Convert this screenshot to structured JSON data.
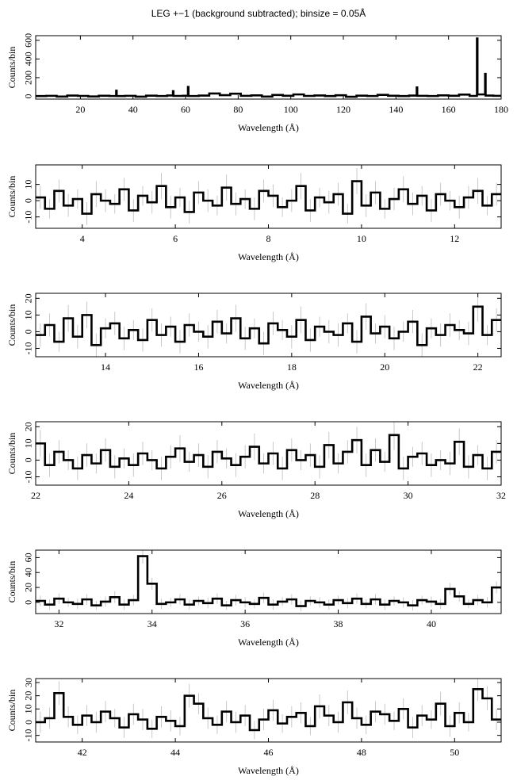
{
  "title": "LEG +−1 (background subtracted); binsize = 0.05Å",
  "chart_data": [
    {
      "type": "step",
      "xlabel": "Wavelength (Å)",
      "ylabel": "Counts/bin",
      "color": "#000000",
      "xlim": [
        3,
        180
      ],
      "xticks": [
        20,
        40,
        60,
        80,
        100,
        120,
        140,
        160,
        180
      ],
      "ylim": [
        -30,
        650
      ],
      "yticks": [
        0,
        200,
        400,
        600
      ],
      "x": [
        3,
        7,
        11,
        15,
        19,
        23,
        27,
        31,
        33.6,
        33.8,
        37,
        41,
        45,
        49,
        53,
        55.2,
        55.4,
        59,
        60.9,
        61.1,
        65,
        69,
        73,
        77,
        81,
        85,
        89,
        93,
        97,
        101,
        105,
        109,
        113,
        117,
        121,
        125,
        129,
        133,
        137,
        141,
        145,
        147.9,
        148.1,
        152,
        156,
        160,
        164,
        168,
        170.8,
        171.0,
        173.9,
        174.1,
        177
      ],
      "values": [
        2,
        5,
        -3,
        8,
        4,
        -2,
        6,
        3,
        60,
        2,
        5,
        -4,
        7,
        3,
        9,
        55,
        4,
        6,
        100,
        3,
        8,
        30,
        12,
        28,
        5,
        10,
        -3,
        14,
        6,
        20,
        4,
        9,
        2,
        11,
        -5,
        7,
        3,
        15,
        6,
        2,
        8,
        95,
        5,
        3,
        10,
        6,
        18,
        4,
        620,
        20,
        240,
        8,
        5
      ]
    },
    {
      "type": "step",
      "xlabel": "Wavelength (Å)",
      "ylabel": "Counts/bin",
      "color": "#000000",
      "error_color": "#bbbbbb",
      "xlim": [
        3,
        13
      ],
      "xticks": [
        4,
        6,
        8,
        10,
        12
      ],
      "ylim": [
        -17,
        22
      ],
      "yticks": [
        -10,
        0,
        10
      ],
      "x": [
        3.0,
        3.2,
        3.4,
        3.6,
        3.8,
        4.0,
        4.2,
        4.4,
        4.6,
        4.8,
        5.0,
        5.2,
        5.4,
        5.6,
        5.8,
        6.0,
        6.2,
        6.4,
        6.6,
        6.8,
        7.0,
        7.2,
        7.4,
        7.6,
        7.8,
        8.0,
        8.2,
        8.4,
        8.6,
        8.8,
        9.0,
        9.2,
        9.4,
        9.6,
        9.8,
        10.0,
        10.2,
        10.4,
        10.6,
        10.8,
        11.0,
        11.2,
        11.4,
        11.6,
        11.8,
        12.0,
        12.2,
        12.4,
        12.6,
        12.8
      ],
      "values": [
        2,
        -5,
        6,
        -3,
        1,
        -8,
        4,
        0,
        -2,
        7,
        -6,
        3,
        -1,
        9,
        -4,
        2,
        -7,
        5,
        0,
        -3,
        8,
        -2,
        1,
        -5,
        6,
        3,
        -4,
        0,
        9,
        -6,
        2,
        -1,
        4,
        -8,
        12,
        -3,
        5,
        -5,
        1,
        7,
        -2,
        3,
        -6,
        4,
        0,
        -4,
        2,
        6,
        -3,
        4
      ],
      "errors": [
        7,
        6,
        7,
        7,
        6,
        7,
        8,
        7,
        6,
        7,
        7,
        6,
        7,
        8,
        7,
        6,
        7,
        7,
        7,
        6,
        8,
        7,
        6,
        7,
        7,
        7,
        6,
        7,
        8,
        7,
        6,
        7,
        7,
        6,
        8,
        7,
        7,
        6,
        7,
        8,
        7,
        6,
        7,
        7,
        6,
        7,
        7,
        8,
        6,
        7
      ]
    },
    {
      "type": "step",
      "xlabel": "Wavelength (Å)",
      "ylabel": "Counts/bin",
      "color": "#000000",
      "error_color": "#bbbbbb",
      "xlim": [
        12.5,
        22.5
      ],
      "xticks": [
        14,
        16,
        18,
        20,
        22
      ],
      "ylim": [
        -15,
        23
      ],
      "yticks": [
        -10,
        0,
        10,
        20
      ],
      "x": [
        12.5,
        12.7,
        12.9,
        13.1,
        13.3,
        13.5,
        13.7,
        13.9,
        14.1,
        14.3,
        14.5,
        14.7,
        14.9,
        15.1,
        15.3,
        15.5,
        15.7,
        15.9,
        16.1,
        16.3,
        16.5,
        16.7,
        16.9,
        17.1,
        17.3,
        17.5,
        17.7,
        17.9,
        18.1,
        18.3,
        18.5,
        18.7,
        18.9,
        19.1,
        19.3,
        19.5,
        19.7,
        19.9,
        20.1,
        20.3,
        20.5,
        20.7,
        20.9,
        21.1,
        21.3,
        21.5,
        21.7,
        21.9,
        22.1,
        22.3
      ],
      "values": [
        -2,
        4,
        -6,
        8,
        -3,
        10,
        -8,
        2,
        5,
        -4,
        1,
        -5,
        7,
        -2,
        3,
        -6,
        4,
        0,
        -3,
        6,
        -1,
        8,
        -4,
        2,
        -7,
        5,
        1,
        -3,
        7,
        -5,
        3,
        0,
        -2,
        5,
        -6,
        9,
        -1,
        3,
        -4,
        0,
        6,
        -8,
        2,
        -2,
        4,
        1,
        -1,
        15,
        -2,
        7
      ],
      "errors": [
        7,
        7,
        6,
        8,
        7,
        8,
        7,
        6,
        7,
        7,
        6,
        7,
        7,
        7,
        6,
        7,
        7,
        6,
        7,
        7,
        6,
        8,
        7,
        6,
        7,
        7,
        6,
        7,
        8,
        7,
        6,
        7,
        7,
        6,
        7,
        8,
        6,
        7,
        7,
        6,
        7,
        7,
        6,
        7,
        7,
        6,
        7,
        9,
        6,
        7
      ]
    },
    {
      "type": "step",
      "xlabel": "Wavelength (Å)",
      "ylabel": "Counts/bin",
      "color": "#000000",
      "error_color": "#bbbbbb",
      "xlim": [
        22,
        32
      ],
      "xticks": [
        22,
        24,
        26,
        28,
        30,
        32
      ],
      "ylim": [
        -15,
        23
      ],
      "yticks": [
        -10,
        0,
        10,
        20
      ],
      "x": [
        22.0,
        22.2,
        22.4,
        22.6,
        22.8,
        23.0,
        23.2,
        23.4,
        23.6,
        23.8,
        24.0,
        24.2,
        24.4,
        24.6,
        24.8,
        25.0,
        25.2,
        25.4,
        25.6,
        25.8,
        26.0,
        26.2,
        26.4,
        26.6,
        26.8,
        27.0,
        27.2,
        27.4,
        27.6,
        27.8,
        28.0,
        28.2,
        28.4,
        28.6,
        28.8,
        29.0,
        29.2,
        29.4,
        29.6,
        29.8,
        30.0,
        30.2,
        30.4,
        30.6,
        30.8,
        31.0,
        31.2,
        31.4,
        31.6,
        31.8
      ],
      "values": [
        10,
        -3,
        5,
        0,
        -5,
        3,
        -2,
        6,
        -4,
        1,
        -3,
        4,
        0,
        -5,
        2,
        7,
        -1,
        3,
        -4,
        5,
        1,
        -3,
        2,
        8,
        -2,
        4,
        -5,
        6,
        0,
        3,
        -4,
        9,
        -2,
        5,
        12,
        -3,
        6,
        -1,
        15,
        -5,
        2,
        4,
        -3,
        0,
        -2,
        11,
        -4,
        3,
        -5,
        5
      ],
      "errors": [
        8,
        7,
        7,
        6,
        7,
        7,
        6,
        7,
        7,
        6,
        7,
        7,
        6,
        7,
        7,
        8,
        6,
        7,
        7,
        7,
        6,
        7,
        7,
        8,
        6,
        7,
        7,
        7,
        6,
        7,
        7,
        8,
        6,
        7,
        8,
        7,
        7,
        6,
        9,
        7,
        6,
        7,
        7,
        6,
        7,
        8,
        7,
        6,
        7,
        7
      ]
    },
    {
      "type": "step",
      "xlabel": "Wavelength (Å)",
      "ylabel": "Counts/bin",
      "color": "#000000",
      "error_color": "#bbbbbb",
      "xlim": [
        31.5,
        41.5
      ],
      "xticks": [
        32,
        34,
        36,
        38,
        40
      ],
      "ylim": [
        -15,
        70
      ],
      "yticks": [
        0,
        20,
        40,
        60
      ],
      "x": [
        31.5,
        31.7,
        31.9,
        32.1,
        32.3,
        32.5,
        32.7,
        32.9,
        33.1,
        33.3,
        33.5,
        33.7,
        33.9,
        34.1,
        34.3,
        34.5,
        34.7,
        34.9,
        35.1,
        35.3,
        35.5,
        35.7,
        35.9,
        36.1,
        36.3,
        36.5,
        36.7,
        36.9,
        37.1,
        37.3,
        37.5,
        37.7,
        37.9,
        38.1,
        38.3,
        38.5,
        38.7,
        38.9,
        39.1,
        39.3,
        39.5,
        39.7,
        39.9,
        40.1,
        40.3,
        40.5,
        40.7,
        40.9,
        41.1,
        41.3
      ],
      "values": [
        2,
        -3,
        5,
        0,
        -2,
        4,
        -4,
        1,
        7,
        -3,
        3,
        62,
        25,
        -2,
        0,
        4,
        -3,
        2,
        -1,
        5,
        -4,
        3,
        0,
        -2,
        6,
        -3,
        1,
        4,
        -5,
        2,
        0,
        -3,
        3,
        -1,
        5,
        -2,
        4,
        -3,
        2,
        0,
        -4,
        3,
        1,
        -2,
        18,
        8,
        -2,
        3,
        0,
        20
      ],
      "errors": [
        7,
        7,
        7,
        6,
        7,
        7,
        6,
        7,
        8,
        7,
        7,
        10,
        8,
        7,
        6,
        7,
        7,
        6,
        7,
        7,
        6,
        7,
        7,
        6,
        7,
        7,
        6,
        7,
        7,
        6,
        7,
        7,
        6,
        7,
        7,
        6,
        7,
        7,
        6,
        7,
        7,
        6,
        7,
        7,
        8,
        7,
        6,
        7,
        7,
        8
      ]
    },
    {
      "type": "step",
      "xlabel": "Wavelength (Å)",
      "ylabel": "Counts/bin",
      "color": "#000000",
      "error_color": "#bbbbbb",
      "xlim": [
        41,
        51
      ],
      "xticks": [
        42,
        44,
        46,
        48,
        50
      ],
      "ylim": [
        -15,
        33
      ],
      "yticks": [
        -10,
        0,
        10,
        20,
        30
      ],
      "x": [
        41.0,
        41.2,
        41.4,
        41.6,
        41.8,
        42.0,
        42.2,
        42.4,
        42.6,
        42.8,
        43.0,
        43.2,
        43.4,
        43.6,
        43.8,
        44.0,
        44.2,
        44.4,
        44.6,
        44.8,
        45.0,
        45.2,
        45.4,
        45.6,
        45.8,
        46.0,
        46.2,
        46.4,
        46.6,
        46.8,
        47.0,
        47.2,
        47.4,
        47.6,
        47.8,
        48.0,
        48.2,
        48.4,
        48.6,
        48.8,
        49.0,
        49.2,
        49.4,
        49.6,
        49.8,
        50.0,
        50.2,
        50.4,
        50.6,
        50.8
      ],
      "values": [
        0,
        3,
        22,
        4,
        -2,
        5,
        0,
        8,
        3,
        -4,
        6,
        2,
        -5,
        4,
        1,
        -3,
        20,
        14,
        3,
        -2,
        8,
        0,
        5,
        -6,
        2,
        9,
        -1,
        4,
        7,
        -3,
        12,
        5,
        0,
        15,
        3,
        -2,
        8,
        6,
        1,
        10,
        -4,
        5,
        2,
        14,
        -3,
        7,
        0,
        25,
        18,
        2
      ],
      "errors": [
        8,
        8,
        9,
        8,
        7,
        8,
        8,
        8,
        7,
        8,
        8,
        8,
        7,
        8,
        8,
        7,
        9,
        8,
        8,
        7,
        8,
        8,
        8,
        7,
        8,
        8,
        7,
        8,
        8,
        7,
        9,
        8,
        8,
        9,
        8,
        7,
        8,
        8,
        7,
        8,
        8,
        8,
        7,
        9,
        8,
        8,
        7,
        9,
        9,
        8
      ]
    }
  ]
}
